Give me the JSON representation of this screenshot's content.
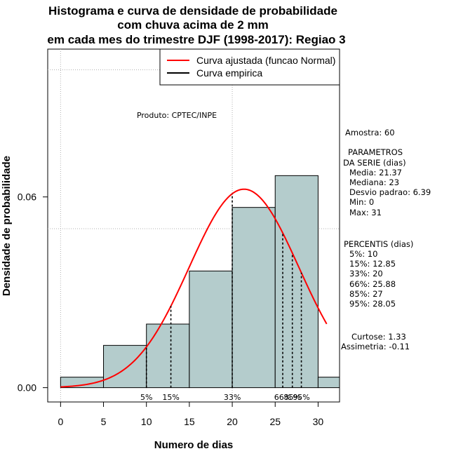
{
  "chart_data": {
    "type": "histogram",
    "title_lines": [
      "Histograma e curva de densidade de probabilidade",
      "com chuva acima de 2 mm",
      "em cada mes do trimestre DJF (1998-2017): Regiao 3"
    ],
    "xlabel": "Numero de dias",
    "ylabel": "Densidade de probabilidade",
    "xlim": [
      -1.5,
      32.5
    ],
    "ylim": [
      -0.0045,
      0.1065
    ],
    "x_ticks": [
      0,
      5,
      10,
      15,
      20,
      25,
      30
    ],
    "x_tick_labels": [
      "0",
      "5",
      "10",
      "15",
      "20",
      "25",
      "30"
    ],
    "y_ticks": [
      0.0,
      0.06
    ],
    "y_tick_labels": [
      "0.00",
      "0.06"
    ],
    "grid_x": [
      0,
      20
    ],
    "grid_y": [
      0.1,
      0.05
    ],
    "bins": [
      {
        "from": 0,
        "to": 5,
        "density": 0.0033
      },
      {
        "from": 5,
        "to": 10,
        "density": 0.0133
      },
      {
        "from": 10,
        "to": 15,
        "density": 0.02
      },
      {
        "from": 15,
        "to": 20,
        "density": 0.0367
      },
      {
        "from": 20,
        "to": 25,
        "density": 0.0567
      },
      {
        "from": 25,
        "to": 30,
        "density": 0.0667
      },
      {
        "from": 30,
        "to": 35,
        "density": 0.0033
      }
    ],
    "normal_curve": {
      "mean": 21.37,
      "sd": 6.39,
      "x_from": 0,
      "x_to": 31,
      "color": "#ff0000"
    },
    "bar_fill": "#b4cccc",
    "percentile_markers": [
      {
        "label": "5%",
        "x": 10
      },
      {
        "label": "15%",
        "x": 12.85
      },
      {
        "label": "33%",
        "x": 20
      },
      {
        "label": "66%",
        "x": 25.88
      },
      {
        "label": "85%",
        "x": 27
      },
      {
        "label": "95%",
        "x": 28.05
      }
    ],
    "credit": "Produto: CPTEC/INPE",
    "legend": [
      {
        "label": "Curva ajustada (funcao Normal)",
        "color": "#ff0000"
      },
      {
        "label": "Curva empirica",
        "color": "#000000"
      }
    ],
    "stats_panel": {
      "amostra": "Amostra: 60",
      "params_header": [
        "PARAMETROS",
        "DA SERIE (dias)"
      ],
      "params": [
        "Media: 21.37",
        "Mediana: 23",
        "Desvio padrao: 6.39",
        "Min: 0",
        "Max: 31"
      ],
      "percentis_header": "PERCENTIS (dias)",
      "percentis": [
        "5%: 10",
        "15%: 12.85",
        "33%: 20",
        "66%: 25.88",
        "85%: 27",
        "95%: 28.05"
      ],
      "curtose": "Curtose: 1.33",
      "assimetria": "Assimetria: -0.11"
    }
  }
}
